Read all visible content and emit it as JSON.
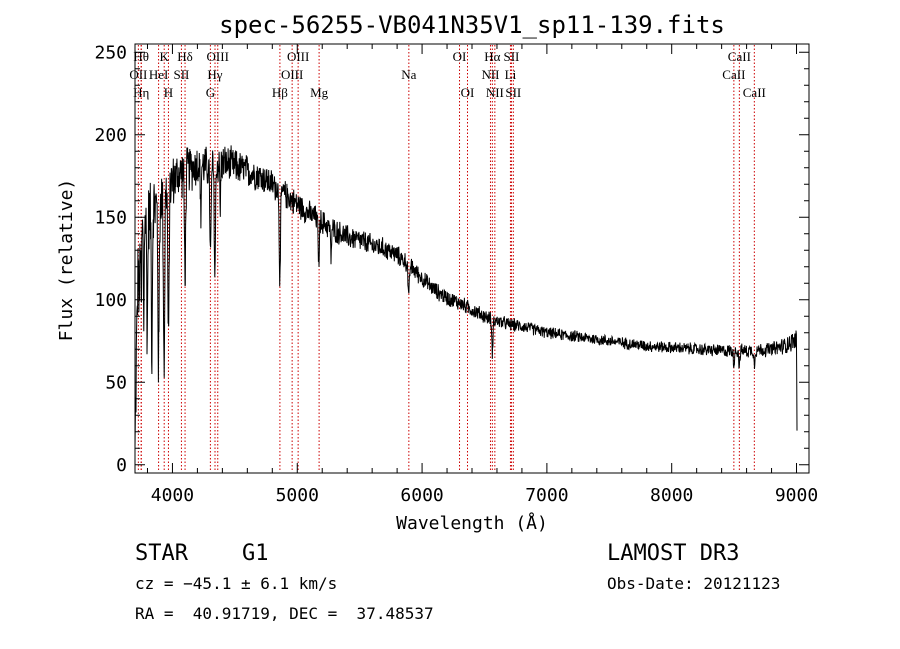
{
  "chart_data": {
    "type": "line",
    "title": "spec-56255-VB041N35V1_sp11-139.fits",
    "xlabel": "Wavelength (Å)",
    "ylabel": "Flux (relative)",
    "xlim": [
      3700,
      9100
    ],
    "ylim": [
      -5,
      255
    ],
    "xticks": [
      4000,
      5000,
      6000,
      7000,
      8000,
      9000
    ],
    "xtick_labels": [
      "4000",
      "5000",
      "6000",
      "7000",
      "8000",
      "9000"
    ],
    "yticks": [
      0,
      50,
      100,
      150,
      200,
      250
    ],
    "ytick_labels": [
      "0",
      "50",
      "100",
      "150",
      "200",
      "250"
    ],
    "grid": false,
    "series": [
      {
        "name": "spectrum",
        "continuum": [
          [
            3700,
            5
          ],
          [
            3712,
            70
          ],
          [
            3725,
            120
          ],
          [
            3745,
            140
          ],
          [
            3770,
            145
          ],
          [
            3800,
            150
          ],
          [
            3850,
            155
          ],
          [
            3900,
            160
          ],
          [
            3950,
            168
          ],
          [
            4000,
            172
          ],
          [
            4050,
            176
          ],
          [
            4100,
            178
          ],
          [
            4200,
            182
          ],
          [
            4300,
            180
          ],
          [
            4400,
            183
          ],
          [
            4500,
            181
          ],
          [
            4600,
            178
          ],
          [
            4700,
            175
          ],
          [
            4800,
            170
          ],
          [
            4900,
            164
          ],
          [
            5000,
            158
          ],
          [
            5100,
            152
          ],
          [
            5200,
            147
          ],
          [
            5300,
            142
          ],
          [
            5400,
            138
          ],
          [
            5500,
            136
          ],
          [
            5600,
            133
          ],
          [
            5700,
            131
          ],
          [
            5800,
            127
          ],
          [
            5900,
            121
          ],
          [
            6000,
            113
          ],
          [
            6100,
            106
          ],
          [
            6200,
            101
          ],
          [
            6300,
            98
          ],
          [
            6400,
            94
          ],
          [
            6500,
            90
          ],
          [
            6600,
            87
          ],
          [
            6700,
            85
          ],
          [
            6800,
            84
          ],
          [
            6900,
            82
          ],
          [
            7000,
            80
          ],
          [
            7200,
            78
          ],
          [
            7400,
            76
          ],
          [
            7600,
            74
          ],
          [
            7800,
            72
          ],
          [
            8000,
            71
          ],
          [
            8200,
            70
          ],
          [
            8400,
            69
          ],
          [
            8600,
            69
          ],
          [
            8800,
            70
          ],
          [
            8900,
            72
          ],
          [
            9000,
            76
          ],
          [
            9005,
            4
          ]
        ],
        "absorption_lines": [
          {
            "wave": 3734,
            "depth": 40,
            "width": 3
          },
          {
            "wave": 3750,
            "depth": 50,
            "width": 3
          },
          {
            "wave": 3770,
            "depth": 60,
            "width": 3
          },
          {
            "wave": 3798,
            "depth": 70,
            "width": 4
          },
          {
            "wave": 3835,
            "depth": 85,
            "width": 4
          },
          {
            "wave": 3889,
            "depth": 100,
            "width": 5
          },
          {
            "wave": 3933,
            "depth": 105,
            "width": 5
          },
          {
            "wave": 3968,
            "depth": 100,
            "width": 5
          },
          {
            "wave": 4101,
            "depth": 65,
            "width": 5
          },
          {
            "wave": 4227,
            "depth": 35,
            "width": 3
          },
          {
            "wave": 4305,
            "depth": 55,
            "width": 5
          },
          {
            "wave": 4340,
            "depth": 65,
            "width": 5
          },
          {
            "wave": 4383,
            "depth": 30,
            "width": 3
          },
          {
            "wave": 4861,
            "depth": 55,
            "width": 5
          },
          {
            "wave": 5172,
            "depth": 25,
            "width": 5
          },
          {
            "wave": 5270,
            "depth": 18,
            "width": 4
          },
          {
            "wave": 5893,
            "depth": 22,
            "width": 5
          },
          {
            "wave": 6563,
            "depth": 20,
            "width": 5
          },
          {
            "wave": 8498,
            "depth": 8,
            "width": 4
          },
          {
            "wave": 8542,
            "depth": 10,
            "width": 4
          },
          {
            "wave": 8662,
            "depth": 9,
            "width": 4
          }
        ],
        "noise_amplitude": [
          [
            3700,
            25
          ],
          [
            3900,
            25
          ],
          [
            4000,
            18
          ],
          [
            4500,
            12
          ],
          [
            5000,
            9
          ],
          [
            5500,
            8
          ],
          [
            6000,
            6
          ],
          [
            6500,
            5
          ],
          [
            7000,
            4
          ],
          [
            8000,
            4
          ],
          [
            8800,
            5
          ],
          [
            9000,
            7
          ]
        ],
        "color": "#000000"
      }
    ],
    "line_markers": [
      {
        "wave": 3727,
        "label": "OII",
        "row": 1
      },
      {
        "wave": 3750,
        "label": "Hθ",
        "row": 0
      },
      {
        "wave": 3750,
        "label": "Hη",
        "row": 2
      },
      {
        "wave": 3889,
        "label": "HeI",
        "row": 1
      },
      {
        "wave": 3934,
        "label": "K",
        "row": 0
      },
      {
        "wave": 3968,
        "label": "H",
        "row": 2
      },
      {
        "wave": 4072,
        "label": "SII",
        "row": 1
      },
      {
        "wave": 4101,
        "label": "Hδ",
        "row": 0
      },
      {
        "wave": 4304,
        "label": "G",
        "row": 2
      },
      {
        "wave": 4341,
        "label": "Hγ",
        "row": 1
      },
      {
        "wave": 4363,
        "label": "OIII",
        "row": 0
      },
      {
        "wave": 4861,
        "label": "Hβ",
        "row": 2
      },
      {
        "wave": 4959,
        "label": "OIII",
        "row": 1
      },
      {
        "wave": 5007,
        "label": "OIII",
        "row": 0
      },
      {
        "wave": 5175,
        "label": "Mg",
        "row": 2
      },
      {
        "wave": 5894,
        "label": "Na",
        "row": 1
      },
      {
        "wave": 6300,
        "label": "OI",
        "row": 0
      },
      {
        "wave": 6364,
        "label": "OI",
        "row": 2
      },
      {
        "wave": 6548,
        "label": "NII",
        "row": 1
      },
      {
        "wave": 6563,
        "label": "Hα",
        "row": 0
      },
      {
        "wave": 6583,
        "label": "NII",
        "row": 2
      },
      {
        "wave": 6708,
        "label": "Li",
        "row": 1
      },
      {
        "wave": 6716,
        "label": "SII",
        "row": 0
      },
      {
        "wave": 6731,
        "label": "SII",
        "row": 2
      },
      {
        "wave": 8498,
        "label": "CaII",
        "row": 1
      },
      {
        "wave": 8542,
        "label": "CaII",
        "row": 0
      },
      {
        "wave": 8662,
        "label": "CaII",
        "row": 2
      }
    ],
    "marker_color": "#cc0000"
  },
  "info": {
    "object_class": "STAR",
    "subclass": "G1",
    "survey": "LAMOST DR3",
    "redshift": "cz = −45.1 ± 6.1 km/s",
    "obs_date": "Obs-Date: 20121123",
    "coords": "RA =  40.91719, DEC =  37.48537"
  }
}
